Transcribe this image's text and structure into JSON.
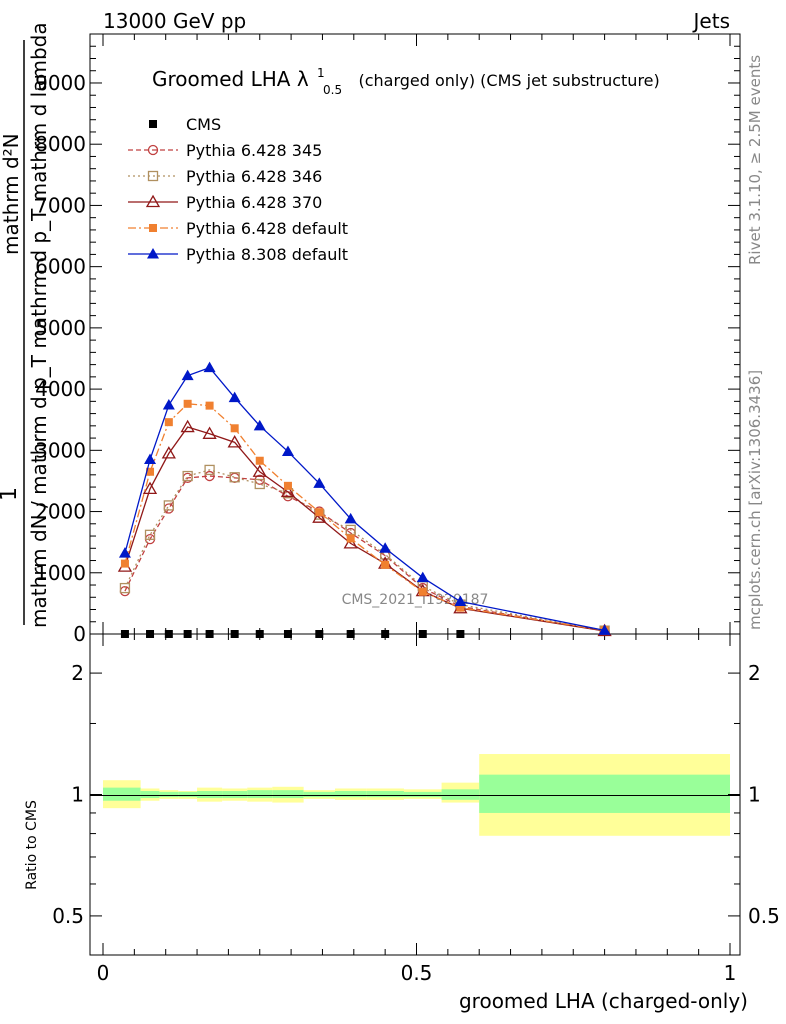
{
  "header": {
    "left": "13000 GeV pp",
    "right": "Jets"
  },
  "side_labels": {
    "rivet": "Rivet 3.1.10, ≥ 2.5M events",
    "mcplots": "mcplots.cern.ch [arXiv:1306.3436]"
  },
  "colors": {
    "cms": "#000000",
    "p345": "#c04040",
    "p346": "#b09060",
    "p370": "#901818",
    "p6def": "#f08030",
    "p8def": "#0018c8",
    "band_inner": "#99ff99",
    "band_outer": "#ffff99"
  },
  "chart_data": [
    {
      "type": "line",
      "title": "Groomed LHA λ",
      "title_sup": "1",
      "title_sub": "0.5",
      "title_suffix": "(charged only) (CMS jet substructure)",
      "watermark": "CMS_2021_I1920187",
      "ylabel_numerator": "1",
      "ylabel_denominator": "mathrm dN / mathrm d p_T mathrm d p_T mathrm d lambda",
      "ylabel_alt": "mathrm d²N",
      "ylim": [
        0,
        9800
      ],
      "y_ticks": [
        0,
        1000,
        2000,
        3000,
        4000,
        5000,
        6000,
        7000,
        8000,
        9000
      ],
      "y_tick_labels": [
        "0",
        "1000",
        "2000",
        "3000",
        "4000",
        "5000",
        "6000",
        "7000",
        "8000",
        "9000"
      ],
      "xlim": [
        -0.02,
        1.02
      ],
      "x": [
        0.035,
        0.075,
        0.105,
        0.135,
        0.17,
        0.21,
        0.25,
        0.295,
        0.345,
        0.395,
        0.45,
        0.51,
        0.57,
        0.8
      ],
      "legend": [
        "CMS",
        "Pythia 6.428 345",
        "Pythia 6.428 346",
        "Pythia 6.428 370",
        "Pythia 6.428 default",
        "Pythia 8.308 default"
      ],
      "series": [
        {
          "name": "CMS",
          "values": [
            0,
            0,
            0,
            0,
            0,
            0,
            0,
            0,
            0,
            0,
            0,
            0,
            0,
            null
          ]
        },
        {
          "name": "Pythia 6.428 345",
          "values": [
            700,
            1550,
            2050,
            2550,
            2580,
            2550,
            2520,
            2250,
            2000,
            1650,
            1280,
            750,
            450,
            50
          ]
        },
        {
          "name": "Pythia 6.428 346",
          "values": [
            750,
            1620,
            2100,
            2580,
            2680,
            2560,
            2450,
            2300,
            1950,
            1700,
            1300,
            780,
            480,
            55
          ]
        },
        {
          "name": "Pythia 6.428 370",
          "values": [
            1100,
            2370,
            2950,
            3380,
            3270,
            3130,
            2650,
            2320,
            1900,
            1480,
            1150,
            700,
            420,
            50
          ]
        },
        {
          "name": "Pythia 6.428 default",
          "values": [
            1150,
            2650,
            3460,
            3760,
            3730,
            3360,
            2830,
            2420,
            1990,
            1560,
            1130,
            690,
            430,
            60
          ]
        },
        {
          "name": "Pythia 8.308 default",
          "values": [
            1320,
            2850,
            3740,
            4220,
            4350,
            3860,
            3400,
            2980,
            2460,
            1880,
            1400,
            920,
            530,
            60
          ]
        }
      ]
    },
    {
      "type": "area",
      "ylabel": "Ratio to CMS",
      "xlabel": "groomed LHA (charged-only)",
      "log_scale": true,
      "ylim": [
        0.4,
        2.5
      ],
      "y_ticks": [
        0.5,
        1,
        2
      ],
      "y_tick_labels": [
        "0.5",
        "1",
        "2"
      ],
      "x_ticks": [
        0,
        0.5,
        1
      ],
      "x_tick_labels": [
        "0",
        "0.5",
        "1"
      ],
      "bands": [
        {
          "x0": 0.0,
          "x1": 0.06,
          "inner": [
            0.965,
            1.04
          ],
          "outer": [
            0.925,
            1.085
          ]
        },
        {
          "x0": 0.06,
          "x1": 0.09,
          "inner": [
            0.98,
            1.02
          ],
          "outer": [
            0.965,
            1.035
          ]
        },
        {
          "x0": 0.09,
          "x1": 0.12,
          "inner": [
            0.985,
            1.015
          ],
          "outer": [
            0.975,
            1.025
          ]
        },
        {
          "x0": 0.12,
          "x1": 0.15,
          "inner": [
            0.985,
            1.015
          ],
          "outer": [
            0.975,
            1.02
          ]
        },
        {
          "x0": 0.15,
          "x1": 0.19,
          "inner": [
            0.98,
            1.02
          ],
          "outer": [
            0.96,
            1.04
          ]
        },
        {
          "x0": 0.19,
          "x1": 0.23,
          "inner": [
            0.98,
            1.02
          ],
          "outer": [
            0.965,
            1.035
          ]
        },
        {
          "x0": 0.23,
          "x1": 0.27,
          "inner": [
            0.98,
            1.025
          ],
          "outer": [
            0.96,
            1.04
          ]
        },
        {
          "x0": 0.27,
          "x1": 0.32,
          "inner": [
            0.98,
            1.025
          ],
          "outer": [
            0.955,
            1.045
          ]
        },
        {
          "x0": 0.32,
          "x1": 0.37,
          "inner": [
            0.985,
            1.015
          ],
          "outer": [
            0.975,
            1.025
          ]
        },
        {
          "x0": 0.37,
          "x1": 0.42,
          "inner": [
            0.985,
            1.02
          ],
          "outer": [
            0.97,
            1.035
          ]
        },
        {
          "x0": 0.42,
          "x1": 0.48,
          "inner": [
            0.985,
            1.02
          ],
          "outer": [
            0.97,
            1.035
          ]
        },
        {
          "x0": 0.48,
          "x1": 0.54,
          "inner": [
            0.985,
            1.015
          ],
          "outer": [
            0.975,
            1.03
          ]
        },
        {
          "x0": 0.54,
          "x1": 0.6,
          "inner": [
            0.97,
            1.03
          ],
          "outer": [
            0.955,
            1.07
          ]
        },
        {
          "x0": 0.6,
          "x1": 1.0,
          "inner": [
            0.9,
            1.12
          ],
          "outer": [
            0.79,
            1.26
          ]
        }
      ]
    }
  ]
}
